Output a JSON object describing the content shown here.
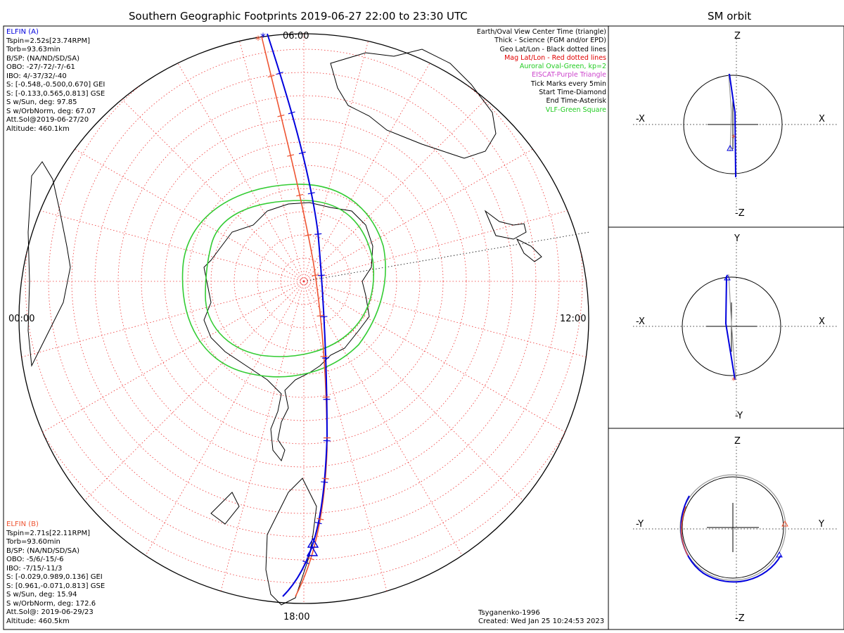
{
  "titles": {
    "main": "Southern Geographic Footprints 2019-06-27 22:00 to 23:30 UTC",
    "orbit": "SM orbit"
  },
  "clock": {
    "top": "06:00",
    "left": "00:00",
    "right": "12:00",
    "bottom": "18:00"
  },
  "elfin_a": {
    "name": "ELFIN (A)",
    "lines": [
      "Tspin=2.52s[23.74RPM]",
      "Torb=93.63min",
      "B/SP: (NA/ND/SD/SA)",
      "OBO: -27/-72/-7/-61",
      "IBO: 4/-37/32/-40",
      "S: [-0.548,-0.500,0.670] GEI",
      "S: [-0.133,0.565,0.813] GSE",
      "S w/Sun, deg: 97.85",
      "S w/OrbNorm, deg: 67.07",
      "Att.Sol@2019-06-27/20",
      "Altitude: 460.1km"
    ]
  },
  "elfin_b": {
    "name": "ELFIN (B)",
    "lines": [
      "Tspin=2.71s[22.11RPM]",
      "Torb=93.60min",
      "B/SP: (NA/ND/SD/SA)",
      "OBO: -5/6/-15/-6",
      "IBO: -7/15/-11/3",
      "S: [-0.029,0.989,0.136] GEI",
      "S: [0.961,-0.071,0.813] GSE",
      "S w/Sun, deg: 15.94",
      "S w/OrbNorm, deg: 172.6",
      "Att.Sol@: 2019-06-29/23",
      "Altitude: 460.5km"
    ]
  },
  "legend": [
    {
      "text": "Earth/Oval View Center Time (triangle)",
      "color": "#000000"
    },
    {
      "text": "Thick - Science (FGM and/or EPD)",
      "color": "#000000"
    },
    {
      "text": "Geo Lat/Lon - Black dotted lines",
      "color": "#000000"
    },
    {
      "text": "Mag Lat/Lon - Red dotted lines",
      "color": "#e00000"
    },
    {
      "text": "Auroral Oval-Green, kp=2",
      "color": "#22cc22"
    },
    {
      "text": "EISCAT-Purple Triangle",
      "color": "#cc44cc"
    },
    {
      "text": "Tick Marks every 5min",
      "color": "#000000"
    },
    {
      "text": "Start Time-Diamond",
      "color": "#000000"
    },
    {
      "text": "End Time-Asterisk",
      "color": "#000000"
    },
    {
      "text": "VLF-Green Square",
      "color": "#22cc22"
    }
  ],
  "footer": {
    "model": "Tsyganenko-1996",
    "created": "Created: Wed Jan 25 10:24:53 2023"
  },
  "panels": [
    {
      "top": "Z",
      "bottom": "-Z",
      "left": "-X",
      "right": "X"
    },
    {
      "top": "Y",
      "bottom": "-Y",
      "left": "-X",
      "right": "X"
    },
    {
      "top": "Z",
      "bottom": "-Z",
      "left": "-Y",
      "right": "Y"
    }
  ],
  "colors": {
    "elfin_a": "#0000dd",
    "elfin_b": "#ee5533",
    "oval": "#33cc33",
    "mag_grid": "#ee3333",
    "geo_grid": "#000000"
  }
}
